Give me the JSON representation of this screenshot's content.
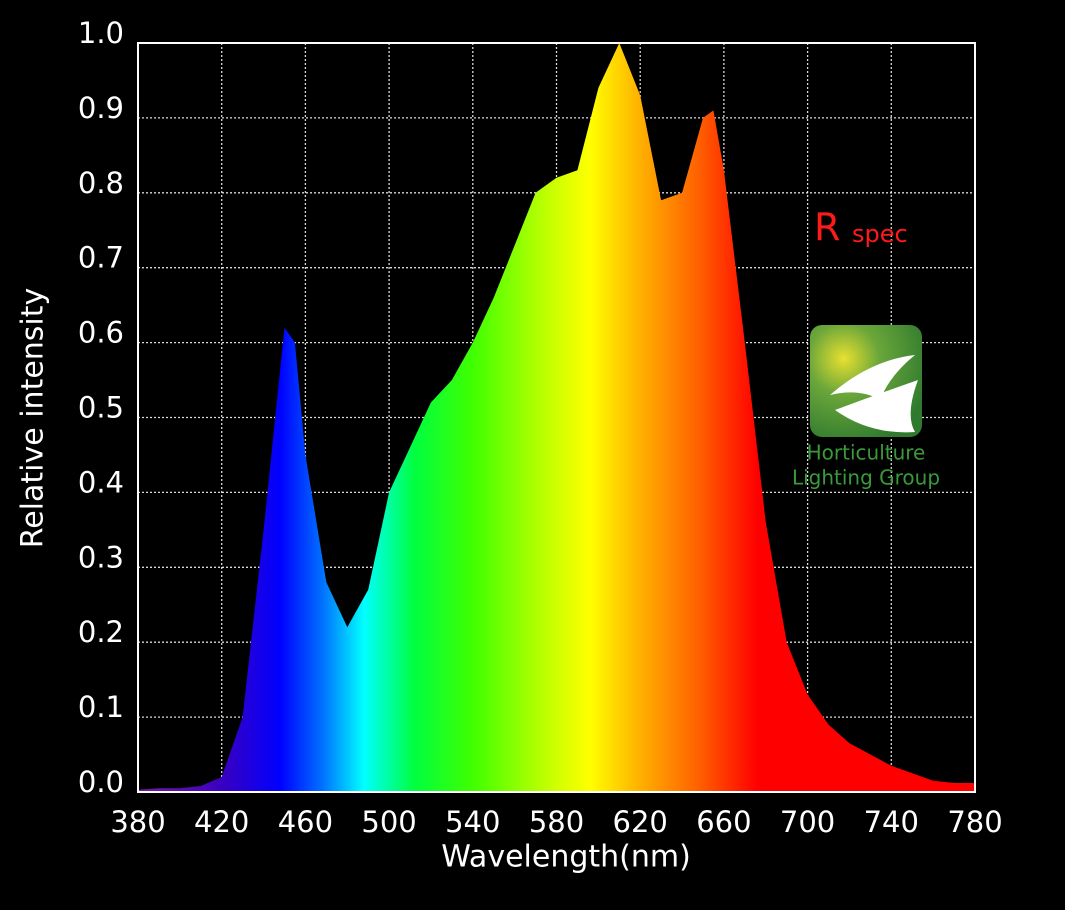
{
  "chart_data": {
    "type": "area",
    "xlabel": "Wavelength(nm)",
    "ylabel": "Relative intensity",
    "x": [
      380,
      390,
      400,
      410,
      420,
      430,
      440,
      450,
      455,
      460,
      470,
      480,
      490,
      500,
      510,
      520,
      530,
      540,
      550,
      560,
      570,
      580,
      590,
      600,
      610,
      620,
      630,
      640,
      650,
      655,
      660,
      670,
      680,
      690,
      700,
      710,
      720,
      730,
      740,
      750,
      760,
      770,
      780
    ],
    "values": [
      0.003,
      0.005,
      0.005,
      0.008,
      0.02,
      0.1,
      0.35,
      0.62,
      0.6,
      0.45,
      0.28,
      0.22,
      0.27,
      0.4,
      0.46,
      0.52,
      0.55,
      0.6,
      0.66,
      0.73,
      0.8,
      0.82,
      0.83,
      0.94,
      1.0,
      0.93,
      0.79,
      0.8,
      0.9,
      0.91,
      0.83,
      0.6,
      0.36,
      0.2,
      0.13,
      0.09,
      0.065,
      0.05,
      0.035,
      0.025,
      0.015,
      0.012,
      0.012
    ],
    "xlim": [
      380,
      780
    ],
    "ylim": [
      0,
      1
    ],
    "xticks": [
      380,
      420,
      460,
      500,
      540,
      580,
      620,
      660,
      700,
      740,
      780
    ],
    "yticks": [
      {
        "value": 0,
        "label": "0.0"
      },
      0.1,
      0.2,
      0.3,
      0.4,
      0.5,
      0.6,
      0.7,
      0.8,
      0.9,
      {
        "value": 1,
        "label": "1.0"
      }
    ],
    "grid": true,
    "annotations": [
      "R",
      "spec"
    ]
  },
  "logo": [
    "Horticulture",
    "Lighting Group"
  ]
}
